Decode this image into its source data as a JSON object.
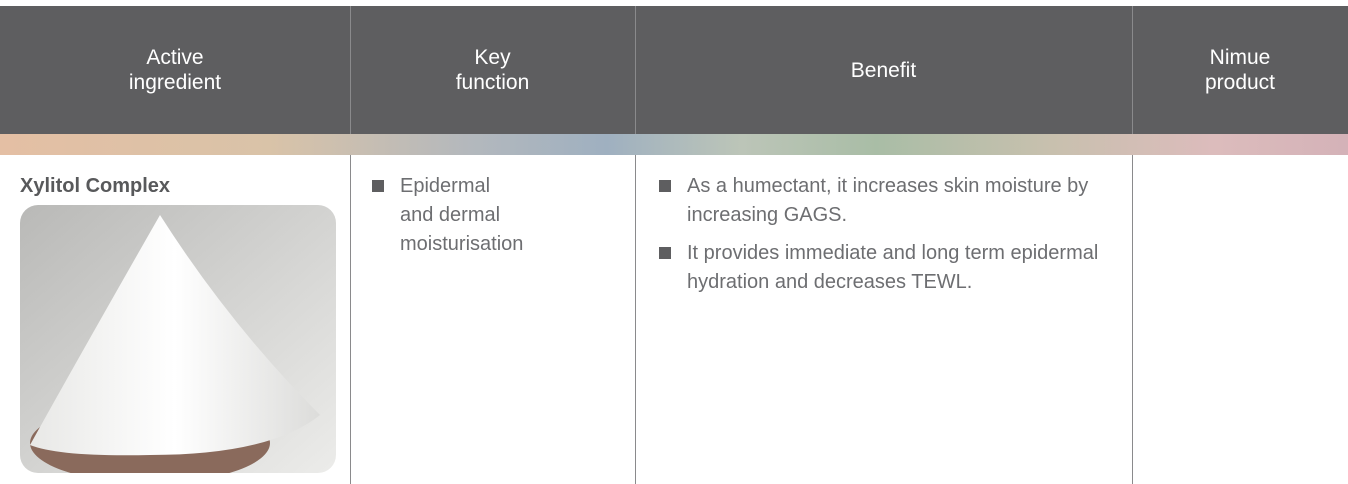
{
  "header": {
    "columns": [
      "Active ingredient",
      "Key function",
      "Benefit",
      "Nimue product"
    ]
  },
  "table": {
    "rows": [
      {
        "ingredient": "Xylitol Complex",
        "functions": [
          "Epidermal and dermal moisturisation"
        ],
        "benefits": [
          "As a humectant, it increases skin moisture by increasing GAGS.",
          "It provides immediate and long term epidermal hydration and decreases TEWL."
        ],
        "product": []
      }
    ]
  }
}
